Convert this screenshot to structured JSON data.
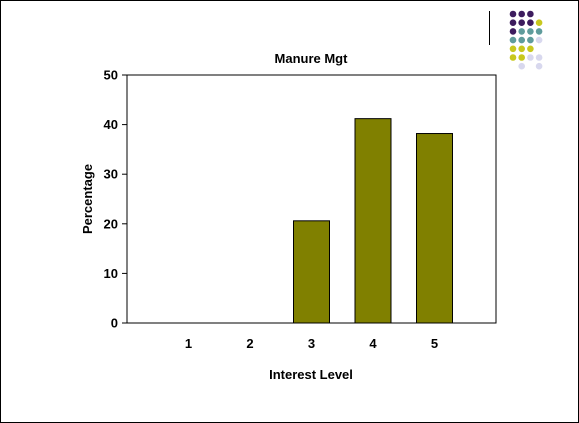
{
  "slide": {
    "decoration": {
      "name": "dot-grid-logo",
      "colors": {
        "purple": "#3d1c5e",
        "teal": "#5f9c9c",
        "olive": "#c8c81e",
        "lavender": "#d8d8ee"
      }
    }
  },
  "chart_data": {
    "type": "bar",
    "title": "Manure Mgt",
    "xlabel": "Interest Level",
    "ylabel": "Percentage",
    "categories": [
      "1",
      "2",
      "3",
      "4",
      "5"
    ],
    "values": [
      0,
      0,
      20.6,
      41.2,
      38.2
    ],
    "ylim": [
      0,
      50
    ],
    "yticks": [
      "0",
      "10",
      "20",
      "30",
      "40",
      "50"
    ],
    "grid": false,
    "legend": "none",
    "bar_color": "#808000",
    "bar_edge_color": "#000000"
  }
}
